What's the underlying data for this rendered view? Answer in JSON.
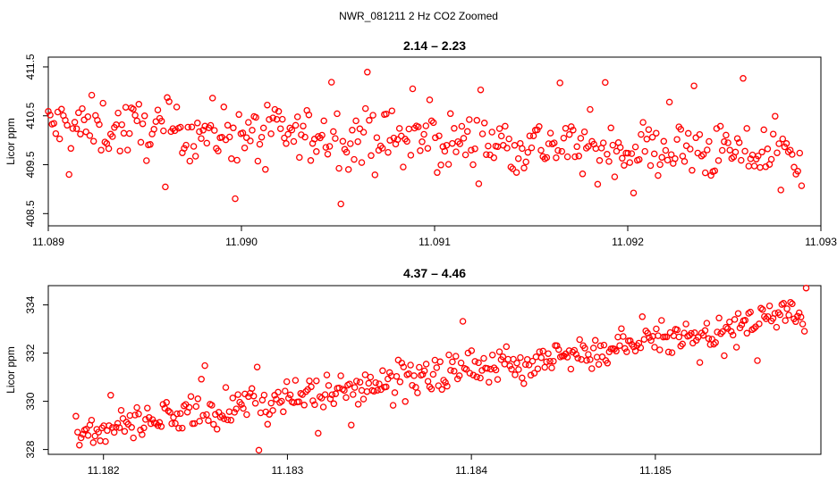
{
  "figure": {
    "title": "NWR_081211  2 Hz CO2 Zoomed"
  },
  "chart_data": [
    {
      "type": "scatter",
      "title": "2.14 – 2.23",
      "xlabel": "",
      "ylabel": "Licor ppm",
      "xlim": [
        11.089,
        11.093
      ],
      "ylim": [
        408.25,
        411.7
      ],
      "xticks": [
        11.089,
        11.09,
        11.091,
        11.092,
        11.093
      ],
      "xtick_labels": [
        "11.089",
        "11.090",
        "11.091",
        "11.092",
        "11.093"
      ],
      "yticks": [
        408.5,
        409.5,
        410.5,
        411.5
      ],
      "ytick_labels": [
        "408.5",
        "409.5",
        "410.5",
        "411.5"
      ],
      "n_points": 400,
      "x_range": [
        11.089,
        11.0929
      ],
      "trend_start": 410.3,
      "trend_end": 409.7,
      "spread": 0.45,
      "marker": "open-circle",
      "color": "#ff0000",
      "series": [
        {
          "name": "Licor CO2",
          "x_start": 11.089,
          "x_step": 9.77e-06,
          "y": [
            410.0,
            409.9,
            409.4,
            409.2,
            410.2,
            410.65,
            410.3,
            410.0,
            410.1,
            410.0,
            409.85,
            410.6,
            410.5,
            409.8,
            409.5,
            410.2,
            409.7,
            410.35,
            411.25,
            410.1,
            409.1,
            409.9,
            410.3,
            410.2,
            410.5,
            410.7,
            410.6,
            410.1,
            410.05,
            410.0,
            409.85,
            409.7,
            409.3,
            410.4,
            410.1,
            410.3,
            410.5,
            410.75,
            410.4,
            410.15,
            410.0,
            409.4,
            410.6,
            411.6,
            409.2,
            409.0,
            410.25,
            410.1,
            409.75,
            411.05,
            411.0,
            410.2,
            410.55,
            410.45,
            410.0,
            410.3,
            410.6,
            410.9,
            411.0,
            410.7,
            410.2,
            410.45,
            409.9,
            410.0,
            410.3,
            410.1,
            410.4,
            410.8,
            410.2,
            411.3,
            411.45,
            411.65,
            409.9,
            409.6,
            408.9,
            409.3,
            409.85,
            410.0,
            410.1,
            409.8,
            409.35,
            409.0,
            409.65,
            409.45,
            410.25,
            409.9,
            409.4,
            409.6,
            409.0,
            410.1,
            408.8,
            409.8,
            409.1,
            410.0,
            410.25,
            409.55,
            410.0,
            409.7,
            409.45,
            410.25,
            409.3,
            409.5,
            409.1,
            409.55,
            410.3,
            409.7,
            409.85,
            410.1,
            409.8,
            409.95,
            410.9,
            410.25,
            409.5,
            409.35,
            409.05,
            409.8,
            408.9,
            410.1,
            409.5,
            410.3,
            408.4,
            409.6,
            410.0,
            409.2,
            410.1,
            409.65,
            409.8,
            409.9,
            410.0,
            409.5,
            409.55,
            409.45,
            408.95,
            409.7,
            409.5,
            410.2,
            410.0,
            409.35,
            410.0,
            409.85,
            409.45,
            409.7,
            410.1,
            409.4,
            409.8,
            410.25,
            409.6,
            409.9,
            408.7,
            409.75,
            409.25,
            409.3,
            409.5,
            409.9,
            408.9,
            409.95,
            410.65,
            410.2,
            409.5,
            408.4,
            408.6,
            410.4,
            410.0,
            409.75,
            410.3,
            409.4,
            410.5,
            409.6,
            409.9,
            409.85,
            409.3,
            409.65,
            410.05,
            409.75,
            409.45,
            410.2,
            409.95,
            409.7,
            410.4,
            409.35,
            408.7,
            409.75,
            410.1,
            409.9,
            410.0,
            410.25,
            409.6,
            410.6,
            410.3,
            410.0,
            409.9,
            410.0,
            409.5,
            409.6,
            409.85,
            409.35,
            409.25,
            410.05,
            409.95,
            409.5,
            409.7,
            409.9,
            408.55,
            408.45,
            409.1,
            409.3,
            409.6,
            409.75,
            410.8,
            409.7,
            410.15,
            409.45,
            409.2,
            409.55,
            409.9,
            409.85,
            410.2,
            409.05,
            408.55,
            409.3,
            409.6,
            409.2,
            409.45,
            409.8,
            409.55,
            409.75,
            410.1,
            409.4,
            409.9,
            410.3,
            409.5,
            409.2,
            409.25,
            409.6,
            409.45,
            410.55,
            409.35,
            409.2,
            409.4,
            409.6,
            409.3,
            409.0,
            409.9,
            409.65,
            409.55,
            409.8,
            409.4,
            409.7,
            409.6,
            408.9,
            409.45,
            409.75,
            409.85,
            409.5
          ],
          "note": "individual samples approximated from the plotted scatter"
        }
      ]
    },
    {
      "type": "scatter",
      "title": "4.37 – 4.46",
      "xlabel": "",
      "ylabel": "Licor ppm",
      "xlim": [
        11.1817,
        11.1859
      ],
      "ylim": [
        327.8,
        334.8
      ],
      "xticks": [
        11.182,
        11.183,
        11.184,
        11.185
      ],
      "xtick_labels": [
        "11.182",
        "11.183",
        "11.184",
        "11.185"
      ],
      "yticks": [
        328,
        330,
        332,
        334
      ],
      "ytick_labels": [
        "328",
        "330",
        "332",
        "334"
      ],
      "n_points": 420,
      "x_range": [
        11.18185,
        11.18582
      ],
      "trend_start": 328.7,
      "trend_end": 333.6,
      "spread": 0.55,
      "marker": "open-circle",
      "color": "#ff0000",
      "series": [
        {
          "name": "Licor CO2",
          "x_start": 11.18185,
          "x_step": 9.46e-06,
          "y": [
            328.5,
            329.6,
            328.1,
            328.05,
            328.9,
            328.7,
            329.2,
            328.8,
            329.0,
            329.3,
            329.1,
            329.35,
            328.7,
            328.65,
            328.55,
            328.7,
            328.6,
            328.75,
            329.1,
            328.4,
            328.6,
            329.0,
            329.5,
            329.3,
            328.85,
            329.6,
            330.05,
            330.6,
            329.2,
            328.65,
            329.4,
            329.25,
            329.5,
            329.0,
            329.1,
            329.3,
            329.4,
            328.95,
            329.5,
            329.7,
            330.2,
            330.4,
            328.5,
            329.3,
            329.5,
            330.55,
            329.9,
            330.0,
            329.5,
            330.3,
            330.1,
            330.2,
            330.45,
            330.5,
            330.3,
            330.65,
            329.6,
            330.05,
            330.3,
            330.5,
            329.85,
            330.1,
            329.5,
            330.2,
            330.0,
            330.8,
            330.15,
            329.75,
            330.3,
            331.0,
            330.5,
            330.35,
            330.75,
            331.1,
            330.2,
            330.6,
            330.9,
            331.1,
            330.4,
            331.15,
            330.6,
            331.3,
            330.45,
            331.0,
            330.2,
            331.55,
            332.1,
            331.6,
            330.8,
            331.2,
            331.8,
            332.25,
            331.1,
            331.5,
            330.5,
            331.6,
            331.0,
            331.3,
            330.7,
            330.95,
            331.4,
            331.75,
            331.6,
            331.9,
            331.85,
            331.2,
            331.5,
            332.1,
            331.4,
            332.2,
            331.75,
            331.3,
            332.3,
            331.6,
            331.9,
            331.85,
            331.5,
            331.0,
            331.2,
            331.55,
            332.05,
            331.9,
            332.2,
            331.75,
            331.6,
            332.3,
            331.45,
            330.8,
            331.65,
            331.3,
            331.85,
            332.15,
            331.7,
            331.8,
            332.45,
            331.6,
            332.05,
            332.6,
            331.75,
            332.2,
            331.9,
            332.7,
            332.4,
            332.25,
            332.45,
            332.6,
            332.05,
            332.55,
            332.85,
            332.4,
            332.55,
            332.2,
            332.9,
            333.2,
            332.7,
            332.5,
            332.95,
            332.7,
            333.1,
            332.8,
            332.45,
            332.3,
            332.9,
            333.3,
            332.75,
            332.5,
            333.35,
            332.7,
            333.95,
            332.65,
            332.95,
            333.1,
            333.3,
            332.6,
            333.35,
            332.85,
            333.65,
            333.2,
            332.7,
            333.45,
            333.9,
            332.5,
            333.55,
            334.05,
            333.2,
            333.5,
            332.55,
            333.65,
            333.45,
            333.35,
            333.8,
            332.6,
            333.55,
            332.75,
            333.7,
            334.25,
            333.6,
            333.5,
            333.3,
            333.65,
            334.3,
            333.45,
            333.95,
            333.75,
            333.6,
            332.95,
            332.85
          ],
          "note": "individual samples approximated from the plotted scatter"
        }
      ]
    }
  ]
}
